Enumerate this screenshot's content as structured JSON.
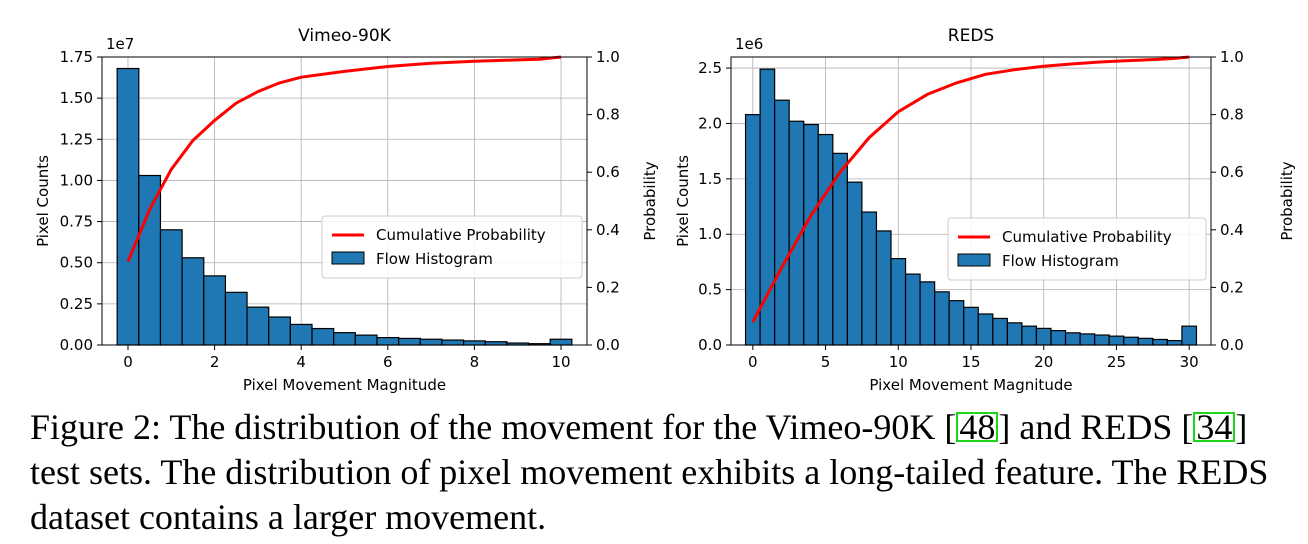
{
  "chart_data": [
    {
      "type": "bar",
      "title": "Vimeo-90K",
      "xlabel": "Pixel Movement Magnitude",
      "ylabel": "Pixel Counts",
      "y2label": "Probability",
      "y_multiplier": "1e7",
      "xlim": [
        -0.6,
        10.6
      ],
      "ylim": [
        0,
        1.75
      ],
      "y2lim": [
        0,
        1.0
      ],
      "xticks": [
        "0",
        "2",
        "4",
        "6",
        "8",
        "10"
      ],
      "yticks": [
        "0.00",
        "0.25",
        "0.50",
        "0.75",
        "1.00",
        "1.25",
        "1.50",
        "1.75"
      ],
      "y2ticks": [
        "0.0",
        "0.2",
        "0.4",
        "0.6",
        "0.8",
        "1.0"
      ],
      "grid": true,
      "legend": {
        "placement": "center-right",
        "entries": [
          "Cumulative Probability",
          "Flow Histogram"
        ]
      },
      "bin_width": 0.5,
      "bins": [
        0,
        0.5,
        1.0,
        1.5,
        2.0,
        2.5,
        3.0,
        3.5,
        4.0,
        4.5,
        5.0,
        5.5,
        6.0,
        6.5,
        7.0,
        7.5,
        8.0,
        8.5,
        9.0,
        9.5,
        10.0
      ],
      "series": [
        {
          "name": "Flow Histogram",
          "kind": "bar",
          "color": "#1f77b4",
          "values": [
            1.68,
            1.03,
            0.7,
            0.53,
            0.42,
            0.32,
            0.23,
            0.17,
            0.125,
            0.1,
            0.075,
            0.06,
            0.045,
            0.04,
            0.035,
            0.03,
            0.025,
            0.02,
            0.012,
            0.008,
            0.035
          ]
        },
        {
          "name": "Cumulative Probability",
          "kind": "line",
          "axis": "right",
          "color": "#ff0000",
          "x": [
            0,
            0.5,
            1,
            1.5,
            2,
            2.5,
            3,
            3.5,
            4,
            5,
            6,
            7,
            8,
            9,
            9.5,
            10
          ],
          "values": [
            0.29,
            0.47,
            0.61,
            0.71,
            0.78,
            0.84,
            0.88,
            0.91,
            0.93,
            0.95,
            0.967,
            0.978,
            0.985,
            0.99,
            0.992,
            1.0
          ]
        }
      ]
    },
    {
      "type": "bar",
      "title": "REDS",
      "xlabel": "Pixel Movement Magnitude",
      "ylabel": "Pixel Counts",
      "y2label": "Probability",
      "y_multiplier": "1e6",
      "xlim": [
        -1.5,
        31.5
      ],
      "ylim": [
        0,
        2.6
      ],
      "y2lim": [
        0,
        1.0
      ],
      "xticks": [
        "0",
        "5",
        "10",
        "15",
        "20",
        "25",
        "30"
      ],
      "yticks": [
        "0.0",
        "0.5",
        "1.0",
        "1.5",
        "2.0",
        "2.5"
      ],
      "y2ticks": [
        "0.0",
        "0.2",
        "0.4",
        "0.6",
        "0.8",
        "1.0"
      ],
      "grid": true,
      "legend": {
        "placement": "center-right",
        "entries": [
          "Cumulative Probability",
          "Flow Histogram"
        ]
      },
      "bin_width": 1,
      "bins": [
        0,
        1,
        2,
        3,
        4,
        5,
        6,
        7,
        8,
        9,
        10,
        11,
        12,
        13,
        14,
        15,
        16,
        17,
        18,
        19,
        20,
        21,
        22,
        23,
        24,
        25,
        26,
        27,
        28,
        29,
        30
      ],
      "series": [
        {
          "name": "Flow Histogram",
          "kind": "bar",
          "color": "#1f77b4",
          "values": [
            2.08,
            2.49,
            2.21,
            2.02,
            1.99,
            1.9,
            1.73,
            1.47,
            1.2,
            1.03,
            0.78,
            0.64,
            0.57,
            0.48,
            0.4,
            0.34,
            0.28,
            0.24,
            0.2,
            0.17,
            0.15,
            0.13,
            0.11,
            0.1,
            0.09,
            0.08,
            0.07,
            0.06,
            0.05,
            0.04,
            0.17
          ]
        },
        {
          "name": "Cumulative Probability",
          "kind": "line",
          "axis": "right",
          "color": "#ff0000",
          "x": [
            0,
            2,
            4,
            6,
            8,
            10,
            12,
            14,
            16,
            18,
            20,
            22,
            24,
            26,
            28,
            29,
            30
          ],
          "values": [
            0.08,
            0.27,
            0.45,
            0.6,
            0.72,
            0.81,
            0.87,
            0.91,
            0.94,
            0.956,
            0.968,
            0.976,
            0.983,
            0.988,
            0.992,
            0.995,
            1.0
          ]
        }
      ]
    }
  ],
  "caption": {
    "seg1": "Figure 2: The distribution of the movement for the Vimeo-90K [",
    "ref1": "48",
    "seg2": "] and REDS [",
    "ref2": "34",
    "seg3": "] test sets. The distribution of pixel movement exhibits a long-tailed feature. The REDS dataset contains a larger movement."
  }
}
